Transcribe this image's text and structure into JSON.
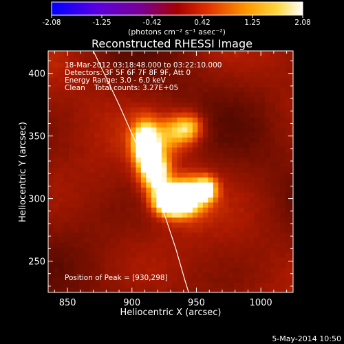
{
  "chart_data": {
    "type": "heatmap",
    "title": "Reconstructed RHESSI Image",
    "xlabel": "Heliocentric X (arcsec)",
    "ylabel": "Heliocentric Y (arcsec)",
    "xlim": [
      835,
      1025
    ],
    "ylim": [
      225,
      418
    ],
    "x_ticks": [
      850,
      900,
      950,
      1000
    ],
    "y_ticks": [
      250,
      300,
      350,
      400
    ],
    "colorbar": {
      "label": "(photons cm⁻² s⁻¹ asec⁻²)",
      "range": [
        -2.08,
        2.08
      ],
      "ticks": [
        "-2.08",
        "-1.25",
        "-0.42",
        "0.42",
        "1.25",
        "2.08"
      ]
    },
    "annotations": [
      "18-Mar-2012 03:18:48.000 to 03:22:10.000",
      "Detectors: 3F 5F 6F 7F 8F 9F, Att 0",
      "Energy Range: 3.0 - 6.0 keV",
      "Clean    Total counts: 3.27E+05"
    ],
    "peak_label": "Position of Peak = [930,298]",
    "peak": [
      930,
      298
    ],
    "sources": [
      {
        "x": 910,
        "y": 344,
        "sx": 7,
        "sy": 12,
        "amp": 1.55
      },
      {
        "x": 918,
        "y": 322,
        "sx": 8,
        "sy": 12,
        "amp": 1.55
      },
      {
        "x": 930,
        "y": 298,
        "sx": 9,
        "sy": 8,
        "amp": 2.08
      },
      {
        "x": 944,
        "y": 302,
        "sx": 10,
        "sy": 11,
        "amp": 1.3
      },
      {
        "x": 958,
        "y": 308,
        "sx": 6,
        "sy": 7,
        "amp": 1.1
      },
      {
        "x": 932,
        "y": 352,
        "sx": 12,
        "sy": 10,
        "amp": 0.8
      },
      {
        "x": 945,
        "y": 358,
        "sx": 8,
        "sy": 8,
        "amp": 0.75
      }
    ],
    "background_level": 0.55,
    "limb_curve": [
      [
        870,
        418
      ],
      [
        890,
        375
      ],
      [
        905,
        340
      ],
      [
        917,
        310
      ],
      [
        926,
        285
      ],
      [
        934,
        260
      ],
      [
        941,
        235
      ],
      [
        944,
        225
      ]
    ],
    "colors": {
      "frame": "#ffffff",
      "limb": "#ffffff",
      "background": "#000000"
    }
  },
  "footer": {
    "date": "5-May-2014 10:50"
  }
}
